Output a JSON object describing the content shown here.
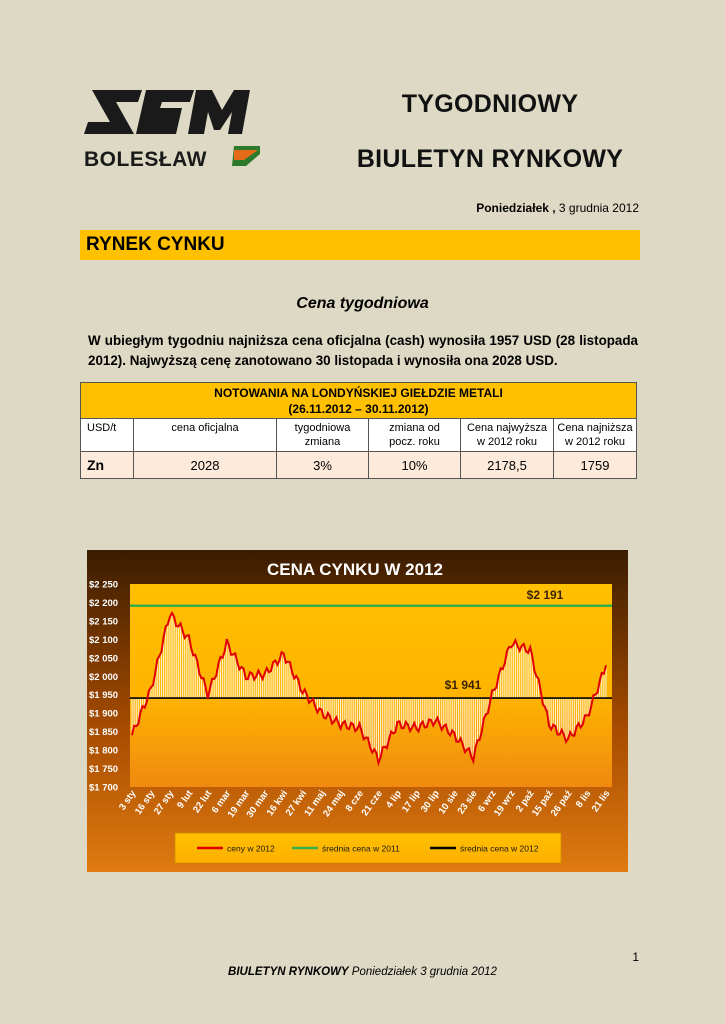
{
  "header": {
    "logo_text": "ZGH",
    "logo_subtext": "BOLESŁAW",
    "title_line1": "TYGODNIOWY",
    "title_line2": "BIULETYN RYNKOWY",
    "date_day": "Poniedziałek ,",
    "date_rest": "3 grudnia 2012"
  },
  "section": {
    "title": "RYNEK CYNKU",
    "subhead": "Cena tygodniowa",
    "intro": "W ubiegłym tygodniu najniższa cena oficjalna (cash) wynosiła 1957 USD (28 listopada 2012). Najwyższą cenę zanotowano 30 listopada i wynosiła ona 2028 USD."
  },
  "table": {
    "title_line1": "NOTOWANIA NA LONDYŃSKIEJ GIEŁDZIE METALI",
    "title_line2": "(26.11.2012 – 30.11.2012)",
    "unit": "USD/t",
    "col1": "cena oficjalna",
    "col2a": "tygodniowa",
    "col2b": "zmiana",
    "col3a": "zmiana od",
    "col3b": "pocz. roku",
    "col4a": "Cena najwyższa",
    "col4b": "w 2012 roku",
    "col5a": "Cena najniższa",
    "col5b": "w 2012 roku",
    "metal": "Zn",
    "v1": "2028",
    "v2": "3%",
    "v3": "10%",
    "v4": "2178,5",
    "v5": "1759"
  },
  "chart_data": {
    "type": "line",
    "title": "CENA CYNKU W 2012",
    "ylim": [
      1700,
      2250
    ],
    "yticks": [
      "$1 700",
      "$1 750",
      "$1 800",
      "$1 850",
      "$1 900",
      "$1 950",
      "$2 000",
      "$2 050",
      "$2 100",
      "$2 150",
      "$2 200",
      "$2 250"
    ],
    "xticks": [
      "3 sty",
      "16 sty",
      "27 sty",
      "9 lut",
      "22 lut",
      "6 mar",
      "19 mar",
      "30 mar",
      "16 kwi",
      "27 kwi",
      "11 maj",
      "24 maj",
      "8 cze",
      "21 cze",
      "4 lip",
      "17 lip",
      "30 lip",
      "10 sie",
      "23 sie",
      "6 wrz",
      "19 wrz",
      "2 paź",
      "15 paź",
      "26 paź",
      "8 lis",
      "21 lis"
    ],
    "series": [
      {
        "name": "ceny w 2012",
        "color": "#e00000",
        "x": [
          "3 sty",
          "16 sty",
          "27 sty",
          "9 lut",
          "22 lut",
          "6 mar",
          "19 mar",
          "30 mar",
          "16 kwi",
          "27 kwi",
          "11 maj",
          "24 maj",
          "8 cze",
          "21 cze",
          "4 lip",
          "17 lip",
          "30 lip",
          "10 sie",
          "23 sie",
          "6 wrz",
          "19 wrz",
          "2 paź",
          "15 paź",
          "26 paź",
          "8 lis",
          "21 lis"
        ],
        "values": [
          1840,
          1965,
          2170,
          2100,
          1950,
          2090,
          2000,
          2005,
          2060,
          1960,
          1900,
          1870,
          1860,
          1775,
          1870,
          1860,
          1880,
          1840,
          1780,
          1950,
          2090,
          2070,
          1870,
          1830,
          1890,
          2030
        ]
      },
      {
        "name": "średnia cena w 2011",
        "color": "#33b04a",
        "values": [
          2191
        ]
      },
      {
        "name": "średnia cena w 2012",
        "color": "#000000",
        "values": [
          1941
        ]
      }
    ],
    "annotations": [
      "$2 191",
      "$1 941"
    ],
    "legend_position": "bottom",
    "grid": false
  },
  "footer": {
    "page_number": "1",
    "text_bold": "BIULETYN  RYNKOWY",
    "text_rest": " Poniedziałek 3 grudnia 2012"
  }
}
